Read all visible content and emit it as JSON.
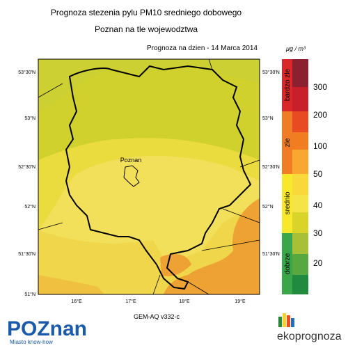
{
  "header": {
    "title": "Prognoza stezenia pylu PM10 sredniego dobowego",
    "subtitle": "Poznan na tle wojewodztwa",
    "date": "Prognoza na dzien -  14 Marca 2014"
  },
  "map": {
    "city": "Poznan",
    "lat_left": [
      "53°30'N",
      "53°N",
      "52°30'N",
      "52°N",
      "51°30'N",
      "51°N"
    ],
    "lat_right": [
      "53°30'N",
      "53°N",
      "52°30'N",
      "52°N",
      "51°30'N"
    ],
    "lon": [
      "16°E",
      "17°E",
      "18°E",
      "19°E"
    ],
    "model": "GEM-AQ v332-c"
  },
  "legend": {
    "unit": "μg / m³",
    "categories": [
      "bardzo zle",
      "zle",
      "srednio",
      "dobrze"
    ],
    "levels": [
      300,
      200,
      100,
      50,
      40,
      30,
      20
    ]
  },
  "footer": {
    "logo_left": "POZnan",
    "tagline": "Miasto know-how",
    "logo_right": "ekoprognoza"
  }
}
